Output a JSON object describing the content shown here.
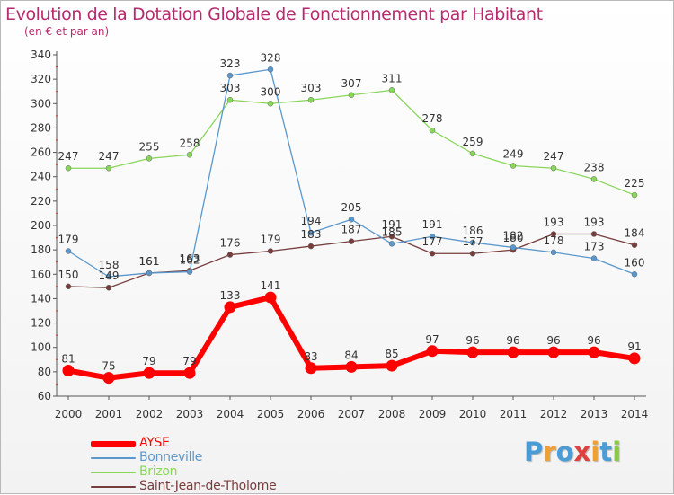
{
  "title": "Evolution de la Dotation Globale de Fonctionnement par Habitant",
  "subtitle": "(en € et par an)",
  "chart_data": {
    "type": "line",
    "title": "Evolution de la Dotation Globale de Fonctionnement par Habitant",
    "subtitle": "(en € et par an)",
    "xlabel": "",
    "ylabel": "",
    "categories": [
      "2000",
      "2001",
      "2002",
      "2003",
      "2004",
      "2005",
      "2006",
      "2007",
      "2008",
      "2009",
      "2010",
      "2011",
      "2012",
      "2013",
      "2014"
    ],
    "ylim": [
      60,
      340
    ],
    "ytick_step": 20,
    "grid": false,
    "legend_position": "bottom-left",
    "series": [
      {
        "name": "AYSE",
        "color": "#ff0000",
        "values": [
          81,
          75,
          79,
          79,
          133,
          141,
          83,
          84,
          85,
          97,
          96,
          96,
          96,
          96,
          91
        ]
      },
      {
        "name": "Bonneville",
        "color": "#5a97cc",
        "values": [
          179,
          158,
          161,
          162,
          323,
          328,
          194,
          205,
          185,
          191,
          186,
          182,
          178,
          173,
          160
        ]
      },
      {
        "name": "Brizon",
        "color": "#88d65a",
        "values": [
          247,
          247,
          255,
          258,
          303,
          300,
          303,
          307,
          311,
          278,
          259,
          249,
          247,
          238,
          225
        ]
      },
      {
        "name": "Saint-Jean-de-Tholome",
        "color": "#773d3d",
        "values": [
          150,
          149,
          161,
          163,
          176,
          179,
          183,
          187,
          191,
          177,
          177,
          180,
          193,
          193,
          184
        ]
      }
    ]
  },
  "logo": {
    "letters": [
      "P",
      "r",
      "o",
      "x",
      "i",
      "t",
      "i"
    ],
    "colors": [
      "#4a9cd6",
      "#f0a030",
      "#4a9cd6",
      "#e04040",
      "#f0a030",
      "#4a9cd6",
      "#88cc44"
    ]
  }
}
